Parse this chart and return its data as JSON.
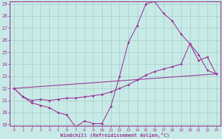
{
  "xlabel": "Windchill (Refroidissement éolien,°C)",
  "bg_color": "#c8eae6",
  "line_color": "#993399",
  "grid_color": "#a0ccc8",
  "xlim": [
    -0.5,
    23.5
  ],
  "ylim": [
    19,
    29
  ],
  "yticks": [
    19,
    20,
    21,
    22,
    23,
    24,
    25,
    26,
    27,
    28,
    29
  ],
  "xticks": [
    0,
    1,
    2,
    3,
    4,
    5,
    6,
    7,
    8,
    9,
    10,
    11,
    12,
    13,
    14,
    15,
    16,
    17,
    18,
    19,
    20,
    21,
    22,
    23
  ],
  "line1_x": [
    0,
    1,
    2,
    3,
    4,
    5,
    6,
    7,
    8,
    9,
    10,
    11,
    12,
    13,
    14,
    15,
    16,
    17,
    18,
    19,
    20,
    21,
    22,
    23
  ],
  "line1_y": [
    22.0,
    21.3,
    20.8,
    20.6,
    20.4,
    20.0,
    19.8,
    18.8,
    19.3,
    19.1,
    19.1,
    20.5,
    23.0,
    25.8,
    27.2,
    29.0,
    29.2,
    28.2,
    27.6,
    26.5,
    25.7,
    24.8,
    23.5,
    23.2
  ],
  "line2_x": [
    0,
    1,
    2,
    3,
    4,
    5,
    6,
    7,
    8,
    9,
    10,
    11,
    12,
    13,
    14,
    15,
    16,
    17,
    18,
    19,
    20,
    21,
    22,
    23
  ],
  "line2_y": [
    22.0,
    21.3,
    21.0,
    21.1,
    21.0,
    21.1,
    21.2,
    21.2,
    21.3,
    21.4,
    21.5,
    21.7,
    22.0,
    22.3,
    22.7,
    23.1,
    23.4,
    23.6,
    23.8,
    24.0,
    25.7,
    24.3,
    24.6,
    23.2
  ],
  "line3_x": [
    0,
    23
  ],
  "line3_y": [
    22.0,
    23.2
  ]
}
